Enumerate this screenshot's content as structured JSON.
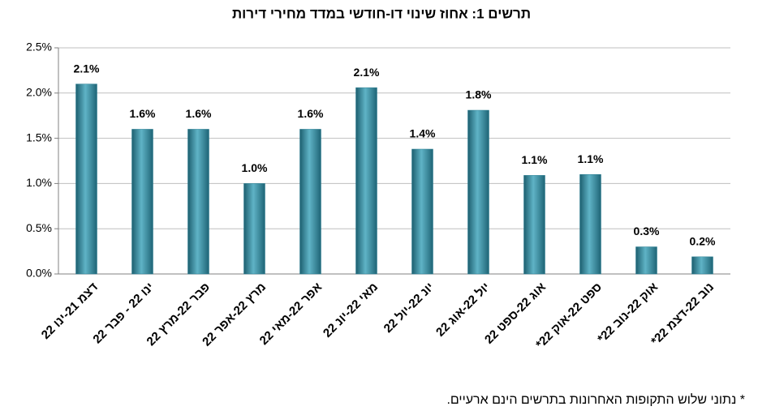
{
  "chart_data": {
    "type": "bar",
    "title": "תרשים 1: אחוז שינוי דו-חודשי במדד מחירי דירות",
    "footnote": "* נתוני שלוש התקופות האחרונות בתרשים הינם ארעיים.",
    "categories": [
      "דצמ 21-ינו 22",
      "ינו 22 - פבר 22",
      "פבר 22-מרץ 22",
      "מרץ 22-אפר 22",
      "אפר 22-מאי 22",
      "מאי 22-יונ 22",
      "יונ 22-יול 22",
      "יול 22-אוג 22",
      "אוג 22-ספט 22",
      "ספט 22-אוק 22*",
      "אוק 22-נוב 22*",
      "נוב 22-דצמ 22*"
    ],
    "values": [
      2.1,
      1.6,
      1.6,
      1.0,
      1.6,
      2.06,
      1.38,
      1.81,
      1.09,
      1.1,
      0.3,
      0.19
    ],
    "value_labels": [
      "2.1%",
      "1.6%",
      "1.6%",
      "1.0%",
      "1.6%",
      "2.1%",
      "1.4%",
      "1.8%",
      "1.1%",
      "1.1%",
      "0.3%",
      "0.2%"
    ],
    "color": "#2a7f93",
    "ylim": [
      0,
      2.5
    ],
    "yticks": [
      {
        "value": 0,
        "label": "0.0%"
      },
      {
        "value": 0.5,
        "label": "0.5%"
      },
      {
        "value": 1,
        "label": "1.0%"
      },
      {
        "value": 1.5,
        "label": "1.5%"
      },
      {
        "value": 2,
        "label": "2.0%"
      },
      {
        "value": 2.5,
        "label": "2.5%"
      }
    ],
    "grid": true
  }
}
